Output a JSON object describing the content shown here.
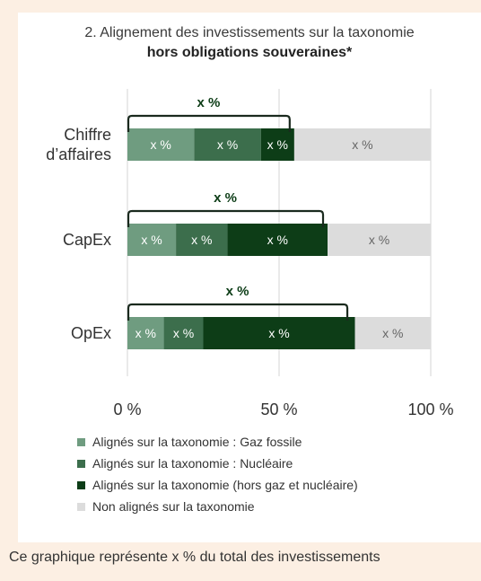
{
  "chart_data": {
    "type": "bar",
    "orientation": "horizontal",
    "stacked": true,
    "title": "2. Alignement des investissements sur la taxonomie",
    "subtitle": "hors obligations souveraines*",
    "categories": [
      "Chiffre\nd’affaires",
      "CapEx",
      "OpEx"
    ],
    "category_lines": [
      [
        "Chiffre",
        "d’affaires"
      ],
      [
        "CapEx"
      ],
      [
        "OpEx"
      ]
    ],
    "series": [
      {
        "name": "Alignés sur la taxonomie : Gaz fossile",
        "values": [
          22,
          16,
          12
        ],
        "color": "#6f9c80",
        "labels": [
          "x %",
          "x %",
          "x %"
        ]
      },
      {
        "name": "Alignés sur la taxonomie : Nucléaire",
        "values": [
          22,
          17,
          13
        ],
        "color": "#3c6e4c",
        "labels": [
          "x %",
          "x %",
          "x %"
        ]
      },
      {
        "name": "Alignés sur la taxonomie (hors gaz et nucléaire)",
        "values": [
          11,
          33,
          50
        ],
        "color": "#0d3d17",
        "labels": [
          "x %",
          "x %",
          "x %"
        ]
      },
      {
        "name": "Non alignés sur la taxonomie",
        "values": [
          45,
          34,
          25
        ],
        "color": "#dcdcdc",
        "labels": [
          "x %",
          "x %",
          "x %"
        ]
      }
    ],
    "bracket_labels": [
      "x %",
      "x %",
      "x %"
    ],
    "bracket_extent": [
      53.5,
      64.5,
      72.5
    ],
    "xlim": [
      0,
      100
    ],
    "xticks": [
      0,
      50,
      100
    ],
    "xtick_labels": [
      "0 %",
      "50 %",
      "100 %"
    ],
    "grid": true,
    "legend_position": "bottom"
  },
  "footnote": "Ce graphique représente x % du total des investissements"
}
